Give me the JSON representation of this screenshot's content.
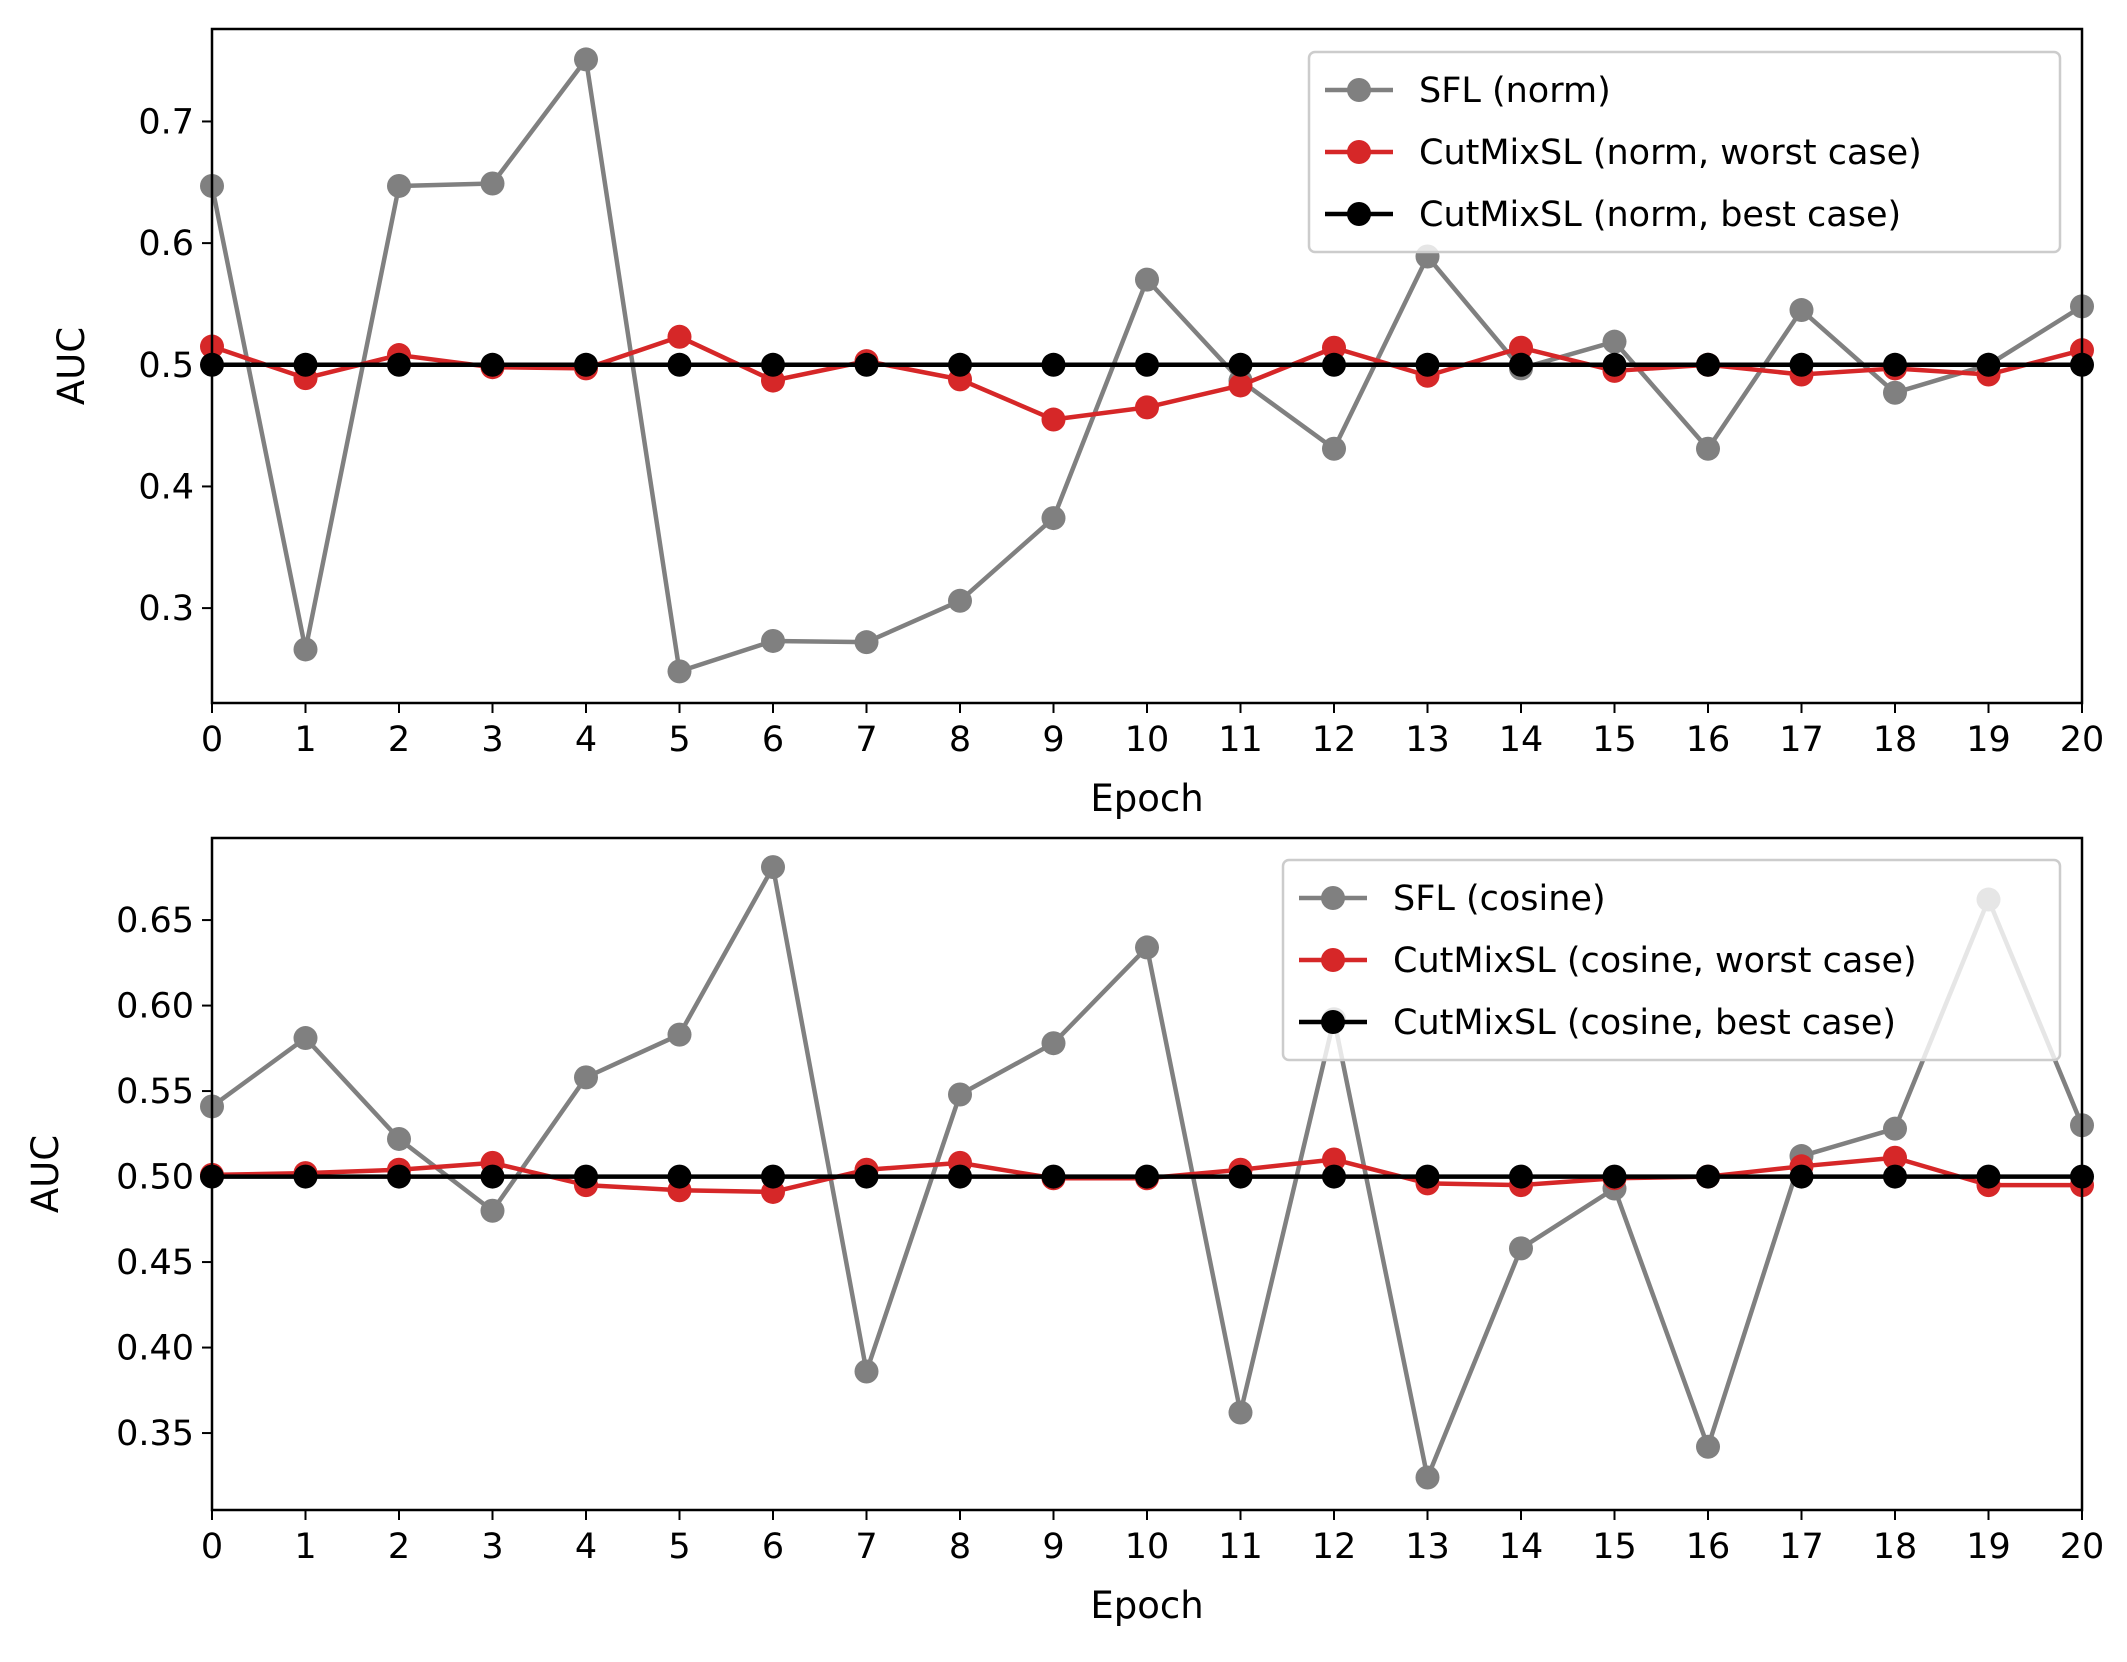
{
  "chart_data": [
    {
      "type": "line",
      "title": "",
      "xlabel": "Epoch",
      "ylabel": "AUC",
      "xlim": [
        0,
        20
      ],
      "ylim": [
        0.222,
        0.776
      ],
      "xticks": [
        "0",
        "1",
        "2",
        "3",
        "4",
        "5",
        "6",
        "7",
        "8",
        "9",
        "10",
        "11",
        "12",
        "13",
        "14",
        "15",
        "16",
        "17",
        "18",
        "19",
        "20"
      ],
      "yticks": [
        "0.3",
        "0.4",
        "0.5",
        "0.6",
        "0.7"
      ],
      "legend_position": "top-right",
      "x": [
        0,
        1,
        2,
        3,
        4,
        5,
        6,
        7,
        8,
        9,
        10,
        11,
        12,
        13,
        14,
        15,
        16,
        17,
        18,
        19,
        20
      ],
      "series": [
        {
          "name": "SFL (norm)",
          "color": "#808080",
          "values": [
            0.647,
            0.266,
            0.647,
            0.649,
            0.751,
            0.248,
            0.273,
            0.272,
            0.306,
            0.374,
            0.57,
            0.487,
            0.431,
            0.589,
            0.497,
            0.519,
            0.431,
            0.545,
            0.477,
            0.5,
            0.548
          ]
        },
        {
          "name": "CutMixSL (norm, worst case)",
          "color": "#d62728",
          "values": [
            0.515,
            0.489,
            0.508,
            0.498,
            0.497,
            0.523,
            0.487,
            0.503,
            0.488,
            0.455,
            0.465,
            0.483,
            0.514,
            0.491,
            0.514,
            0.495,
            0.5,
            0.492,
            0.497,
            0.492,
            0.512
          ]
        },
        {
          "name": "CutMixSL (norm, best case)",
          "color": "#000000",
          "values": [
            0.5,
            0.5,
            0.5,
            0.5,
            0.5,
            0.5,
            0.5,
            0.5,
            0.5,
            0.5,
            0.5,
            0.5,
            0.5,
            0.5,
            0.5,
            0.5,
            0.5,
            0.5,
            0.5,
            0.5,
            0.5
          ]
        }
      ]
    },
    {
      "type": "line",
      "title": "",
      "xlabel": "Epoch",
      "ylabel": "AUC",
      "xlim": [
        0,
        20
      ],
      "ylim": [
        0.305,
        0.698
      ],
      "xticks": [
        "0",
        "1",
        "2",
        "3",
        "4",
        "5",
        "6",
        "7",
        "8",
        "9",
        "10",
        "11",
        "12",
        "13",
        "14",
        "15",
        "16",
        "17",
        "18",
        "19",
        "20"
      ],
      "yticks": [
        "0.35",
        "0.40",
        "0.45",
        "0.50",
        "0.55",
        "0.60",
        "0.65"
      ],
      "legend_position": "top-right",
      "x": [
        0,
        1,
        2,
        3,
        4,
        5,
        6,
        7,
        8,
        9,
        10,
        11,
        12,
        13,
        14,
        15,
        16,
        17,
        18,
        19,
        20
      ],
      "series": [
        {
          "name": "SFL (cosine)",
          "color": "#808080",
          "values": [
            0.541,
            0.581,
            0.522,
            0.48,
            0.558,
            0.583,
            0.681,
            0.386,
            0.548,
            0.578,
            0.634,
            0.362,
            0.592,
            0.324,
            0.458,
            0.493,
            0.342,
            0.512,
            0.528,
            0.662,
            0.53
          ]
        },
        {
          "name": "CutMixSL (cosine, worst case)",
          "color": "#d62728",
          "values": [
            0.501,
            0.502,
            0.504,
            0.508,
            0.495,
            0.492,
            0.491,
            0.504,
            0.508,
            0.499,
            0.499,
            0.504,
            0.51,
            0.496,
            0.495,
            0.499,
            0.5,
            0.506,
            0.511,
            0.495,
            0.495
          ]
        },
        {
          "name": "CutMixSL (cosine, best case)",
          "color": "#000000",
          "values": [
            0.5,
            0.5,
            0.5,
            0.5,
            0.5,
            0.5,
            0.5,
            0.5,
            0.5,
            0.5,
            0.5,
            0.5,
            0.5,
            0.5,
            0.5,
            0.5,
            0.5,
            0.5,
            0.5,
            0.5,
            0.5
          ]
        }
      ]
    }
  ]
}
